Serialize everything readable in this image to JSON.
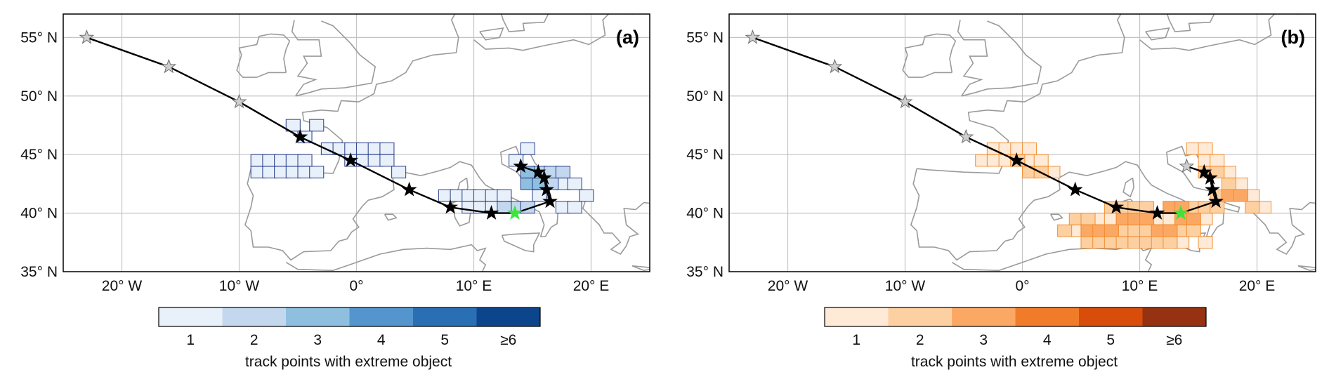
{
  "panels": [
    {
      "label": "(a)",
      "lat_ticks": [
        "55° N",
        "50° N",
        "45° N",
        "40° N",
        "35° N"
      ],
      "lon_ticks": [
        "20° W",
        "10° W",
        "0°",
        "10° E",
        "20° E"
      ],
      "colorbar_ticks": [
        "1",
        "2",
        "3",
        "4",
        "5",
        "≥6"
      ],
      "colorbar_colors": [
        "#e8f0fa",
        "#c3d8ee",
        "#8fbfdf",
        "#5395cc",
        "#2a6fb4",
        "#0d458c"
      ],
      "colorbar_label": "track points with extreme object",
      "contour_color": "#1a2f80"
    },
    {
      "label": "(b)",
      "lat_ticks": [
        "55° N",
        "50° N",
        "45° N",
        "40° N",
        "35° N"
      ],
      "lon_ticks": [
        "20° W",
        "10° W",
        "0°",
        "10° E",
        "20° E"
      ],
      "colorbar_ticks": [
        "1",
        "2",
        "3",
        "4",
        "5",
        "≥6"
      ],
      "colorbar_colors": [
        "#feead6",
        "#fdd0a2",
        "#fca865",
        "#f07c2a",
        "#d94d0a",
        "#963112"
      ],
      "colorbar_label": "track points with extreme object",
      "contour_color": "#f08a2a"
    }
  ],
  "map_extent": {
    "lon": [
      -25,
      25
    ],
    "lat": [
      35,
      57
    ]
  },
  "track": [
    {
      "lon": -23.0,
      "lat": 55.0
    },
    {
      "lon": -16.0,
      "lat": 52.5
    },
    {
      "lon": -10.0,
      "lat": 49.5
    },
    {
      "lon": -4.8,
      "lat": 46.5
    },
    {
      "lon": -0.5,
      "lat": 44.5
    },
    {
      "lon": 4.5,
      "lat": 42.0
    },
    {
      "lon": 8.0,
      "lat": 40.5
    },
    {
      "lon": 11.5,
      "lat": 40.0
    },
    {
      "lon": 13.5,
      "lat": 40.0
    },
    {
      "lon": 16.5,
      "lat": 41.0
    },
    {
      "lon": 16.2,
      "lat": 42.0
    },
    {
      "lon": 16.0,
      "lat": 43.0
    },
    {
      "lon": 15.5,
      "lat": 43.5
    },
    {
      "lon": 14.0,
      "lat": 44.0
    }
  ],
  "highlighted_index": 8,
  "highlight_color": "#39e639",
  "marked_points": {
    "a": [
      false,
      false,
      false,
      true,
      true,
      true,
      true,
      true,
      true,
      true,
      true,
      true,
      true,
      true
    ],
    "b": [
      false,
      false,
      false,
      false,
      true,
      true,
      true,
      true,
      true,
      true,
      true,
      true,
      true,
      false
    ]
  },
  "regions": {
    "a": [
      {
        "level": 1,
        "cells": [
          [
            -9,
            43
          ],
          [
            -8,
            43
          ],
          [
            -7,
            43
          ],
          [
            -6,
            43
          ],
          [
            -5,
            43
          ],
          [
            -4,
            43
          ],
          [
            -9,
            44
          ],
          [
            -8,
            44
          ],
          [
            -7,
            44
          ],
          [
            -6,
            44
          ],
          [
            -5,
            44
          ],
          [
            -3,
            45
          ],
          [
            -2,
            45
          ],
          [
            -1,
            45
          ],
          [
            0,
            45
          ],
          [
            1,
            45
          ],
          [
            2,
            45
          ],
          [
            -4,
            47
          ],
          [
            -6,
            47
          ],
          [
            -5,
            46
          ],
          [
            -1,
            44
          ],
          [
            0,
            44
          ],
          [
            1,
            44
          ],
          [
            2,
            44
          ],
          [
            3,
            43
          ],
          [
            7,
            41
          ],
          [
            8,
            41
          ],
          [
            9,
            41
          ],
          [
            10,
            41
          ],
          [
            11,
            41
          ],
          [
            12,
            41
          ],
          [
            9,
            40
          ],
          [
            10,
            40
          ],
          [
            11,
            40
          ],
          [
            14,
            45
          ],
          [
            13,
            44
          ],
          [
            17,
            40
          ],
          [
            18,
            40
          ],
          [
            17,
            42
          ],
          [
            18,
            42
          ],
          [
            19,
            41
          ],
          [
            15,
            41
          ]
        ]
      },
      {
        "level": 2,
        "cells": [
          [
            13,
            40
          ],
          [
            14,
            40
          ],
          [
            12,
            40
          ],
          [
            15,
            43
          ],
          [
            16,
            43
          ],
          [
            15,
            42
          ],
          [
            16,
            42
          ],
          [
            17,
            43
          ]
        ]
      },
      {
        "level": 3,
        "cells": [
          [
            14,
            42
          ],
          [
            15,
            42
          ],
          [
            14,
            43
          ]
        ]
      }
    ],
    "b": [
      {
        "level": 1,
        "cells": [
          [
            -4,
            44
          ],
          [
            -3,
            44
          ],
          [
            -2,
            44
          ],
          [
            -1,
            44
          ],
          [
            0,
            44
          ],
          [
            1,
            44
          ],
          [
            -3,
            45
          ],
          [
            -2,
            45
          ],
          [
            -1,
            45
          ],
          [
            0,
            45
          ],
          [
            2,
            43
          ],
          [
            14,
            45
          ],
          [
            15,
            45
          ],
          [
            15,
            44
          ],
          [
            16,
            44
          ],
          [
            17,
            43
          ],
          [
            18,
            42
          ],
          [
            19,
            41
          ],
          [
            20,
            40
          ],
          [
            6,
            39
          ],
          [
            7,
            39
          ],
          [
            8,
            39
          ],
          [
            9,
            39
          ],
          [
            10,
            39
          ],
          [
            11,
            39
          ],
          [
            12,
            39
          ],
          [
            13,
            39
          ],
          [
            14,
            39
          ],
          [
            15,
            39
          ],
          [
            4,
            38
          ],
          [
            5,
            38
          ],
          [
            13,
            37
          ],
          [
            15,
            37
          ]
        ]
      },
      {
        "level": 2,
        "cells": [
          [
            3,
            38
          ],
          [
            4,
            39
          ],
          [
            5,
            39
          ],
          [
            6,
            38
          ],
          [
            7,
            38
          ],
          [
            8,
            38
          ],
          [
            9,
            38
          ],
          [
            10,
            38
          ],
          [
            11,
            38
          ],
          [
            12,
            38
          ],
          [
            13,
            38
          ],
          [
            14,
            38
          ],
          [
            5,
            37
          ],
          [
            6,
            37
          ],
          [
            7,
            37
          ],
          [
            8,
            37
          ],
          [
            9,
            37
          ],
          [
            10,
            37
          ],
          [
            11,
            37
          ],
          [
            12,
            37
          ],
          [
            7,
            40
          ],
          [
            8,
            40
          ],
          [
            9,
            40
          ],
          [
            10,
            40
          ],
          [
            12,
            40
          ],
          [
            13,
            40
          ],
          [
            14,
            40
          ],
          [
            15,
            40
          ],
          [
            16,
            40
          ],
          [
            16,
            41
          ],
          [
            17,
            41
          ],
          [
            17,
            42
          ],
          [
            18,
            41
          ],
          [
            15,
            43
          ],
          [
            16,
            43
          ],
          [
            19,
            40
          ],
          [
            -1,
            44
          ],
          [
            0,
            43
          ],
          [
            1,
            43
          ]
        ]
      },
      {
        "level": 3,
        "cells": [
          [
            5,
            38
          ],
          [
            6,
            38
          ],
          [
            7,
            38
          ],
          [
            8,
            39
          ],
          [
            9,
            39
          ],
          [
            10,
            39
          ],
          [
            11,
            38
          ],
          [
            12,
            38
          ],
          [
            13,
            39
          ],
          [
            14,
            39
          ],
          [
            12,
            40
          ],
          [
            13,
            40
          ],
          [
            17,
            41
          ],
          [
            18,
            41
          ]
        ]
      }
    ]
  }
}
